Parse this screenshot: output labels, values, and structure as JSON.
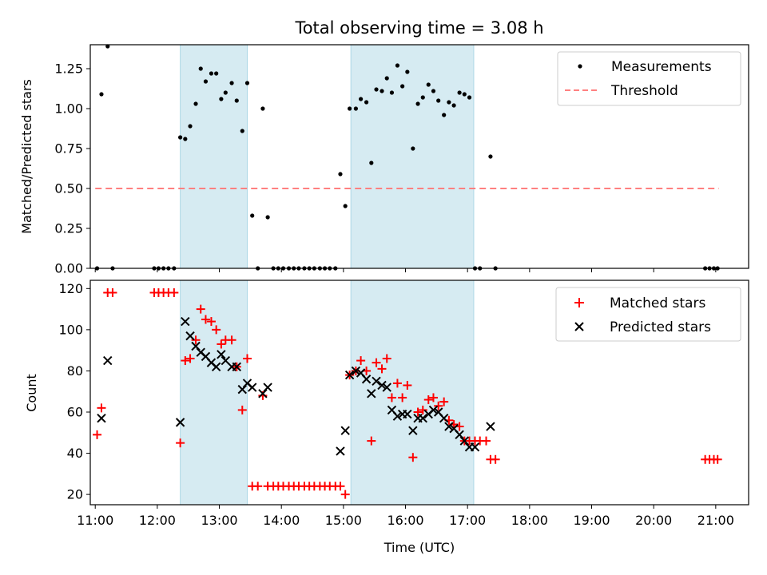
{
  "title": "Total observing time = 3.08 h",
  "chart_data": [
    {
      "type": "scatter",
      "ylabel": "Matched/Predicted stars",
      "xlim": [
        10.92,
        21.53
      ],
      "ylim": [
        0,
        1.4
      ],
      "ytick_labels": [
        "0.00",
        "0.25",
        "0.50",
        "0.75",
        "1.00",
        "1.25"
      ],
      "ytick_values": [
        0,
        0.25,
        0.5,
        0.75,
        1.0,
        1.25
      ],
      "legend_location": "top-right",
      "shaded_intervals": [
        [
          12.37,
          13.45
        ],
        [
          15.12,
          17.1
        ]
      ],
      "series": [
        {
          "name": "Measurements",
          "color": "#000000",
          "marker": "dot",
          "points": [
            [
              11.03,
              0
            ],
            [
              11.1,
              1.09
            ],
            [
              11.2,
              1.39
            ],
            [
              11.28,
              0
            ],
            [
              11.95,
              0
            ],
            [
              12.02,
              0
            ],
            [
              12.1,
              0
            ],
            [
              12.18,
              0
            ],
            [
              12.27,
              0
            ],
            [
              12.37,
              0.82
            ],
            [
              12.45,
              0.81
            ],
            [
              12.53,
              0.89
            ],
            [
              12.62,
              1.03
            ],
            [
              12.7,
              1.25
            ],
            [
              12.78,
              1.17
            ],
            [
              12.87,
              1.22
            ],
            [
              12.95,
              1.22
            ],
            [
              13.03,
              1.06
            ],
            [
              13.1,
              1.1
            ],
            [
              13.2,
              1.16
            ],
            [
              13.28,
              1.05
            ],
            [
              13.37,
              0.86
            ],
            [
              13.45,
              1.16
            ],
            [
              13.53,
              0.33
            ],
            [
              13.62,
              0
            ],
            [
              13.7,
              1.0
            ],
            [
              13.78,
              0.32
            ],
            [
              13.87,
              0
            ],
            [
              13.95,
              0
            ],
            [
              14.03,
              0
            ],
            [
              14.12,
              0
            ],
            [
              14.2,
              0
            ],
            [
              14.28,
              0
            ],
            [
              14.37,
              0
            ],
            [
              14.45,
              0
            ],
            [
              14.53,
              0
            ],
            [
              14.62,
              0
            ],
            [
              14.7,
              0
            ],
            [
              14.78,
              0
            ],
            [
              14.87,
              0
            ],
            [
              14.95,
              0.59
            ],
            [
              15.03,
              0.39
            ],
            [
              15.1,
              1.0
            ],
            [
              15.2,
              1.0
            ],
            [
              15.28,
              1.06
            ],
            [
              15.37,
              1.04
            ],
            [
              15.45,
              0.66
            ],
            [
              15.53,
              1.12
            ],
            [
              15.62,
              1.11
            ],
            [
              15.7,
              1.19
            ],
            [
              15.78,
              1.1
            ],
            [
              15.87,
              1.27
            ],
            [
              15.95,
              1.14
            ],
            [
              16.03,
              1.23
            ],
            [
              16.12,
              0.75
            ],
            [
              16.2,
              1.03
            ],
            [
              16.28,
              1.07
            ],
            [
              16.37,
              1.15
            ],
            [
              16.45,
              1.11
            ],
            [
              16.53,
              1.05
            ],
            [
              16.62,
              0.96
            ],
            [
              16.7,
              1.04
            ],
            [
              16.78,
              1.02
            ],
            [
              16.87,
              1.1
            ],
            [
              16.95,
              1.09
            ],
            [
              17.03,
              1.07
            ],
            [
              17.12,
              0
            ],
            [
              17.2,
              0
            ],
            [
              17.37,
              0.7
            ],
            [
              17.45,
              0
            ],
            [
              20.83,
              0
            ],
            [
              20.9,
              0
            ],
            [
              20.97,
              0
            ],
            [
              21.03,
              0
            ]
          ]
        },
        {
          "name": "Threshold",
          "color": "#ff8080",
          "line_style": "dashed",
          "x": [
            11.0,
            21.05
          ],
          "y": [
            0.5,
            0.5
          ]
        }
      ]
    },
    {
      "type": "scatter",
      "xlabel": "Time (UTC)",
      "ylabel": "Count",
      "xlim": [
        10.92,
        21.53
      ],
      "ylim": [
        15,
        124
      ],
      "ytick_values": [
        20,
        40,
        60,
        80,
        100,
        120
      ],
      "ytick_labels": [
        "20",
        "40",
        "60",
        "80",
        "100",
        "120"
      ],
      "xtick_values": [
        11,
        12,
        13,
        14,
        15,
        16,
        17,
        18,
        19,
        20,
        21
      ],
      "xtick_labels": [
        "11:00",
        "12:00",
        "13:00",
        "14:00",
        "15:00",
        "16:00",
        "17:00",
        "18:00",
        "19:00",
        "20:00",
        "21:00"
      ],
      "legend_location": "top-right",
      "shaded_intervals": [
        [
          12.37,
          13.45
        ],
        [
          15.12,
          17.1
        ]
      ],
      "series": [
        {
          "name": "Matched stars",
          "color": "#ff0000",
          "marker": "plus",
          "points": [
            [
              11.03,
              49
            ],
            [
              11.1,
              62
            ],
            [
              11.2,
              118
            ],
            [
              11.28,
              118
            ],
            [
              11.95,
              118
            ],
            [
              12.02,
              118
            ],
            [
              12.1,
              118
            ],
            [
              12.18,
              118
            ],
            [
              12.27,
              118
            ],
            [
              12.37,
              45
            ],
            [
              12.45,
              85
            ],
            [
              12.53,
              86
            ],
            [
              12.62,
              95
            ],
            [
              12.7,
              110
            ],
            [
              12.78,
              105
            ],
            [
              12.87,
              104
            ],
            [
              12.95,
              100
            ],
            [
              13.03,
              93
            ],
            [
              13.1,
              95
            ],
            [
              13.2,
              95
            ],
            [
              13.28,
              82
            ],
            [
              13.37,
              61
            ],
            [
              13.45,
              86
            ],
            [
              13.53,
              24
            ],
            [
              13.62,
              24
            ],
            [
              13.7,
              68
            ],
            [
              13.78,
              24
            ],
            [
              13.87,
              24
            ],
            [
              13.95,
              24
            ],
            [
              14.03,
              24
            ],
            [
              14.12,
              24
            ],
            [
              14.2,
              24
            ],
            [
              14.28,
              24
            ],
            [
              14.37,
              24
            ],
            [
              14.45,
              24
            ],
            [
              14.53,
              24
            ],
            [
              14.62,
              24
            ],
            [
              14.7,
              24
            ],
            [
              14.78,
              24
            ],
            [
              14.87,
              24
            ],
            [
              14.95,
              24
            ],
            [
              15.03,
              20
            ],
            [
              15.1,
              78
            ],
            [
              15.2,
              80
            ],
            [
              15.28,
              85
            ],
            [
              15.37,
              80
            ],
            [
              15.45,
              46
            ],
            [
              15.53,
              84
            ],
            [
              15.62,
              81
            ],
            [
              15.7,
              86
            ],
            [
              15.78,
              67
            ],
            [
              15.87,
              74
            ],
            [
              15.95,
              67
            ],
            [
              16.03,
              73
            ],
            [
              16.12,
              38
            ],
            [
              16.2,
              60
            ],
            [
              16.28,
              61
            ],
            [
              16.37,
              66
            ],
            [
              16.45,
              67
            ],
            [
              16.53,
              63
            ],
            [
              16.62,
              65
            ],
            [
              16.7,
              56
            ],
            [
              16.78,
              54
            ],
            [
              16.87,
              53
            ],
            [
              16.95,
              46
            ],
            [
              17.03,
              46
            ],
            [
              17.12,
              46
            ],
            [
              17.2,
              46
            ],
            [
              17.3,
              46
            ],
            [
              17.37,
              37
            ],
            [
              17.45,
              37
            ],
            [
              20.83,
              37
            ],
            [
              20.9,
              37
            ],
            [
              20.97,
              37
            ],
            [
              21.03,
              37
            ]
          ]
        },
        {
          "name": "Predicted stars",
          "color": "#000000",
          "marker": "x",
          "points": [
            [
              11.1,
              57
            ],
            [
              11.2,
              85
            ],
            [
              12.37,
              55
            ],
            [
              12.45,
              104
            ],
            [
              12.53,
              97
            ],
            [
              12.62,
              92
            ],
            [
              12.7,
              89
            ],
            [
              12.78,
              87
            ],
            [
              12.87,
              84
            ],
            [
              12.95,
              82
            ],
            [
              13.03,
              88
            ],
            [
              13.1,
              85
            ],
            [
              13.2,
              82
            ],
            [
              13.28,
              82
            ],
            [
              13.37,
              71
            ],
            [
              13.45,
              74
            ],
            [
              13.53,
              72
            ],
            [
              13.7,
              69
            ],
            [
              13.78,
              72
            ],
            [
              14.95,
              41
            ],
            [
              15.03,
              51
            ],
            [
              15.1,
              78
            ],
            [
              15.2,
              80
            ],
            [
              15.28,
              79
            ],
            [
              15.37,
              76
            ],
            [
              15.45,
              69
            ],
            [
              15.53,
              75
            ],
            [
              15.62,
              73
            ],
            [
              15.7,
              72
            ],
            [
              15.78,
              61
            ],
            [
              15.87,
              58
            ],
            [
              15.95,
              59
            ],
            [
              16.03,
              59
            ],
            [
              16.12,
              51
            ],
            [
              16.2,
              57
            ],
            [
              16.28,
              57
            ],
            [
              16.37,
              59
            ],
            [
              16.45,
              61
            ],
            [
              16.53,
              60
            ],
            [
              16.62,
              57
            ],
            [
              16.7,
              53
            ],
            [
              16.78,
              52
            ],
            [
              16.87,
              49
            ],
            [
              16.95,
              46
            ],
            [
              17.03,
              43
            ],
            [
              17.12,
              43
            ],
            [
              17.37,
              53
            ]
          ]
        }
      ]
    }
  ]
}
